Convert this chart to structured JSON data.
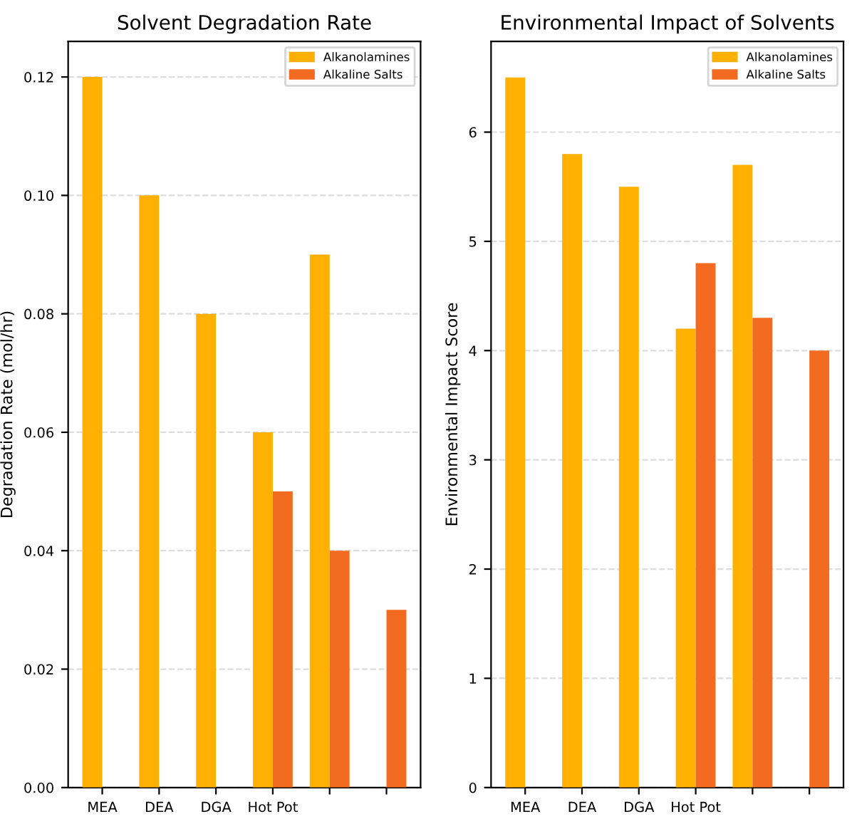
{
  "chart_data": [
    {
      "type": "bar",
      "title": "Solvent Degradation Rate",
      "ylabel": "Degradation Rate (mol/hr)",
      "categories": [
        "MEA",
        "DEA",
        "DGA",
        "Hot Pot",
        null,
        null
      ],
      "series": [
        {
          "name": "Alkanolamines",
          "color": "#ffb000",
          "values": [
            0.12,
            0.1,
            0.08,
            0.06,
            0.09,
            null
          ]
        },
        {
          "name": "Alkaline Salts",
          "color": "#f26b21",
          "values": [
            null,
            null,
            null,
            0.05,
            0.04,
            0.03
          ]
        }
      ],
      "ylim": [
        0,
        0.126
      ],
      "yticks": [
        {
          "value": 0,
          "label": "0.00"
        },
        {
          "value": 0.02,
          "label": "0.02"
        },
        {
          "value": 0.04,
          "label": "0.04"
        },
        {
          "value": 0.06,
          "label": "0.06"
        },
        {
          "value": 0.08,
          "label": "0.08"
        },
        {
          "value": 0.1,
          "label": "0.10"
        },
        {
          "value": 0.12,
          "label": "0.12"
        }
      ],
      "grid": "y",
      "legend": "top right"
    },
    {
      "type": "bar",
      "title": "Environmental Impact of Solvents",
      "ylabel": "Environmental Impact Score",
      "categories": [
        "MEA",
        "DEA",
        "DGA",
        "Hot Pot",
        null,
        null
      ],
      "series": [
        {
          "name": "Alkanolamines",
          "color": "#ffb000",
          "values": [
            6.5,
            5.8,
            5.5,
            4.2,
            5.7,
            null
          ]
        },
        {
          "name": "Alkaline Salts",
          "color": "#f26b21",
          "values": [
            null,
            null,
            null,
            4.8,
            4.3,
            4.0
          ]
        }
      ],
      "ylim": [
        0,
        6.83
      ],
      "yticks": [
        0,
        1,
        2,
        3,
        4,
        5,
        6
      ],
      "grid": "y",
      "legend": "top right"
    }
  ]
}
